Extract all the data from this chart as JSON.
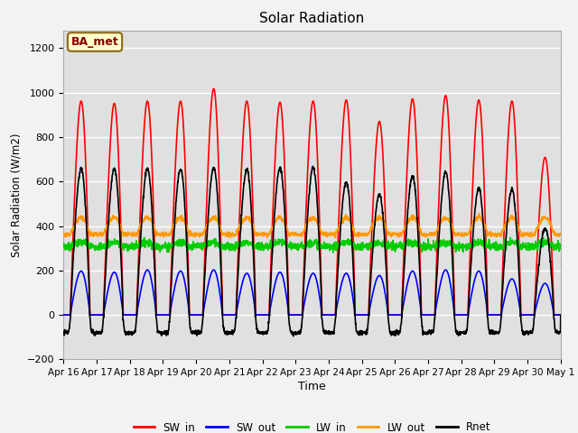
{
  "title": "Solar Radiation",
  "xlabel": "Time",
  "ylabel": "Solar Radiation (W/m2)",
  "ylim": [
    -200,
    1280
  ],
  "yticks": [
    -200,
    0,
    200,
    400,
    600,
    800,
    1000,
    1200
  ],
  "annotation": "BA_met",
  "x_tick_labels": [
    "Apr 16",
    "Apr 17",
    "Apr 18",
    "Apr 19",
    "Apr 20",
    "Apr 21",
    "Apr 22",
    "Apr 23",
    "Apr 24",
    "Apr 25",
    "Apr 26",
    "Apr 27",
    "Apr 28",
    "Apr 29",
    "Apr 30",
    "May 1"
  ],
  "fig_bg_color": "#f2f2f2",
  "plot_bg_color": "#e0e0e0",
  "grid_color": "#ffffff",
  "legend_entries": [
    "SW_in",
    "SW_out",
    "LW_in",
    "LW_out",
    "Rnet"
  ],
  "line_colors": [
    "#ff0000",
    "#0000ff",
    "#00cc00",
    "#ff9900",
    "#000000"
  ],
  "line_widths": [
    1.2,
    1.2,
    1.2,
    1.2,
    1.2
  ],
  "n_days": 15,
  "points_per_day": 144,
  "SW_in_peaks": [
    950,
    940,
    950,
    950,
    1005,
    950,
    945,
    950,
    955,
    860,
    960,
    975,
    955,
    950,
    700
  ],
  "SW_out_peaks": [
    195,
    190,
    200,
    195,
    200,
    185,
    190,
    185,
    185,
    175,
    195,
    200,
    195,
    160,
    140
  ],
  "LW_in_base": 308,
  "LW_out_base": 362,
  "Rnet_peaks": [
    650,
    650,
    650,
    650,
    655,
    648,
    655,
    655,
    590,
    535,
    615,
    635,
    560,
    555,
    385
  ],
  "Rnet_night": -80
}
